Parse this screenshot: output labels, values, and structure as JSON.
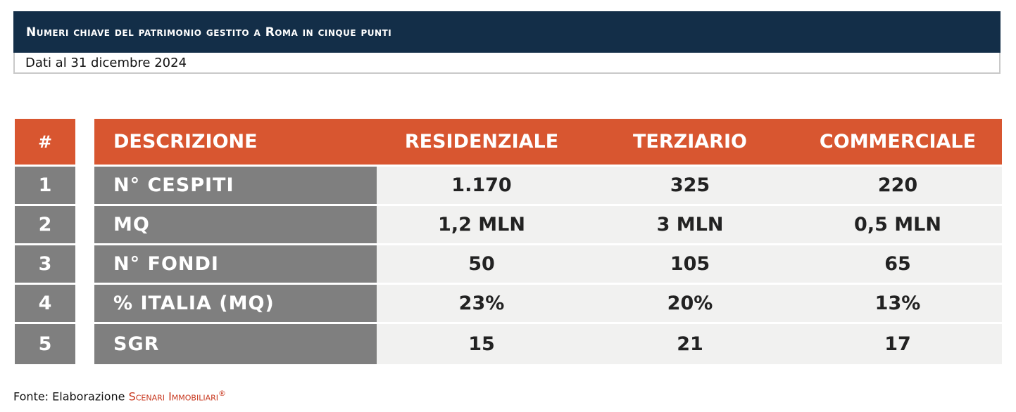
{
  "header": {
    "title": "Numeri chiave del patrimonio gestito a Roma in cinque punti",
    "subtitle": "Dati al 31 dicembre 2024"
  },
  "table": {
    "columns": [
      "#",
      "DESCRIZIONE",
      "RESIDENZIALE",
      "TERZIARIO",
      "COMMERCIALE"
    ],
    "rows": [
      {
        "num": "1",
        "label": "N° CESPITI",
        "values": [
          "1.170",
          "325",
          "220"
        ]
      },
      {
        "num": "2",
        "label": "MQ",
        "values": [
          "1,2 MLN",
          "3 MLN",
          "0,5 MLN"
        ]
      },
      {
        "num": "3",
        "label": "N° FONDI",
        "values": [
          "50",
          "105",
          "65"
        ]
      },
      {
        "num": "4",
        "label": "% ITALIA (MQ)",
        "values": [
          "23%",
          "20%",
          "13%"
        ]
      },
      {
        "num": "5",
        "label": "SGR",
        "values": [
          "15",
          "21",
          "17"
        ]
      }
    ]
  },
  "footer": {
    "prefix": "Fonte: Elaborazione",
    "brand": "Scenari Immobiliari",
    "mark": "®"
  },
  "colors": {
    "title_bg": "#132e48",
    "header_bg": "#d85630",
    "label_bg": "#7f7f7f",
    "value_bg": "#f1f1f0",
    "brand": "#c8371e"
  }
}
